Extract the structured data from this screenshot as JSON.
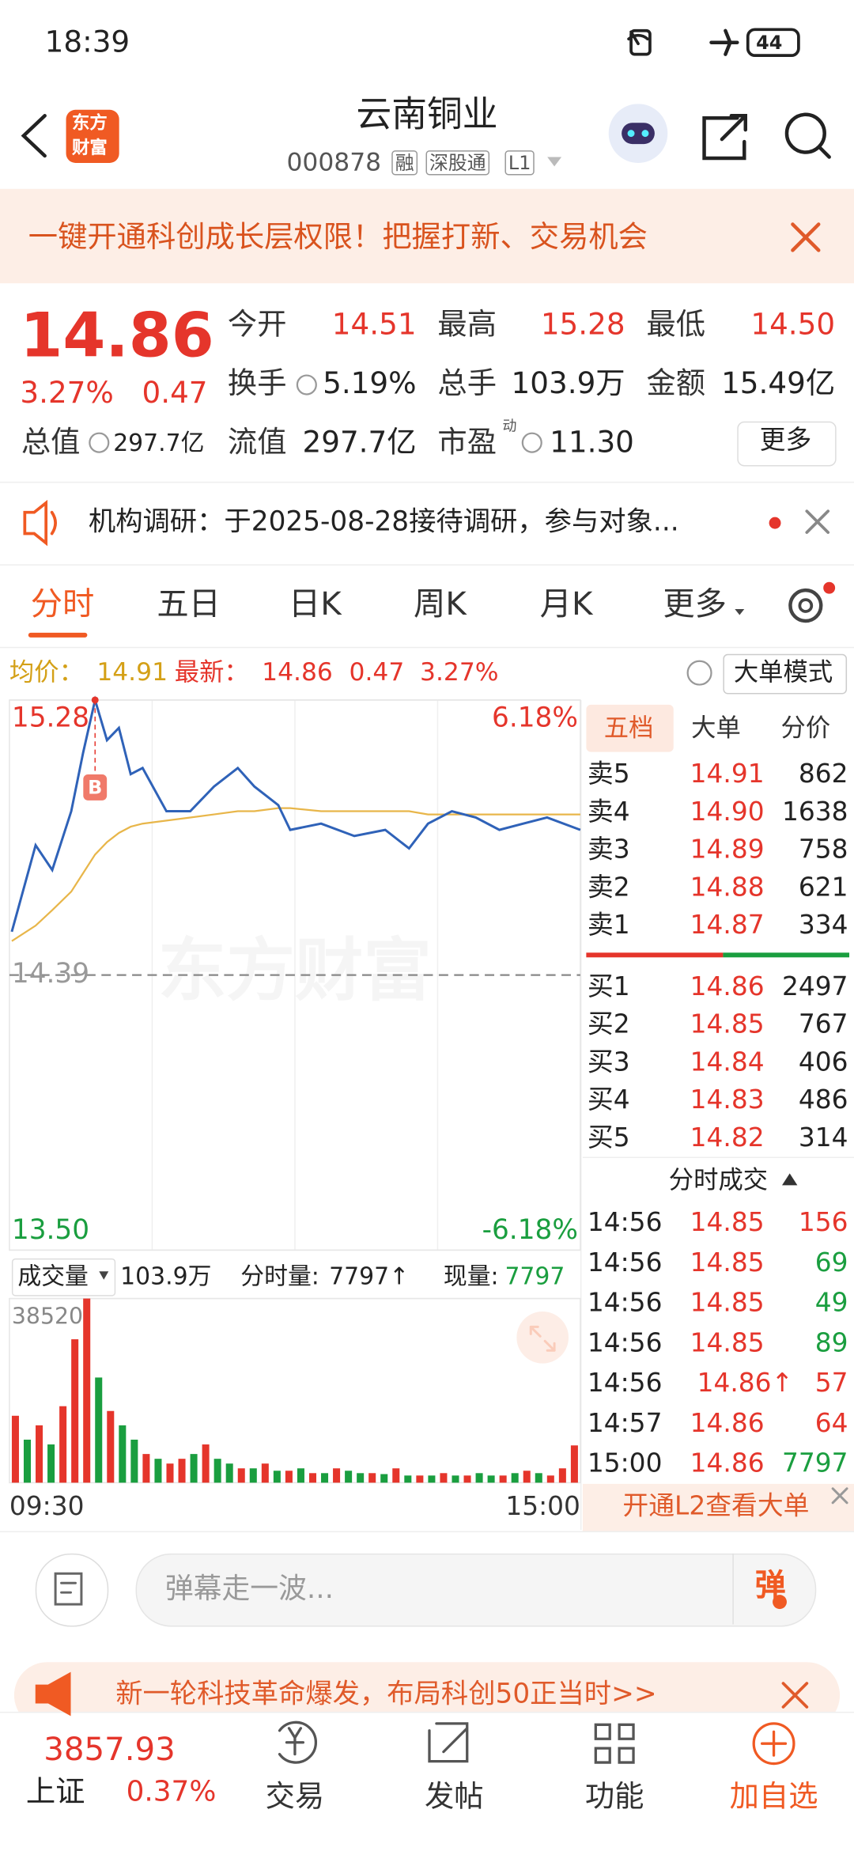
{
  "status_bar": {
    "time": "18:39",
    "battery": "44"
  },
  "header": {
    "logo_top": "东方",
    "logo_bottom": "财富",
    "title": "云南铜业",
    "code": "000878",
    "tags": [
      "融",
      "深股通",
      "L1"
    ]
  },
  "banner": {
    "text": "一键开通科创成长层权限！把握打新、交易机会"
  },
  "quote": {
    "price": "14.86",
    "change_pct": "3.27%",
    "change": "0.47",
    "more": "更多",
    "fields": [
      {
        "label": "今开",
        "value": "14.51"
      },
      {
        "label": "最高",
        "value": "15.28"
      },
      {
        "label": "最低",
        "value": "14.50"
      },
      {
        "label": "换手",
        "value": "5.19%"
      },
      {
        "label": "总手",
        "value": "103.9万"
      },
      {
        "label": "金额",
        "value": "15.49亿"
      },
      {
        "label": "总值",
        "value": "297.7亿"
      },
      {
        "label": "流值",
        "value": "297.7亿"
      },
      {
        "label": "市盈",
        "sup": "动",
        "value": "11.30"
      }
    ]
  },
  "notice": {
    "text": "机构调研：于2025-08-28接待调研，参与对象..."
  },
  "tabs": [
    "分时",
    "五日",
    "日K",
    "周K",
    "月K",
    "更多"
  ],
  "summary": {
    "avg_label": "均价：",
    "avg": "14.91",
    "last_label": "最新：",
    "last": "14.86",
    "change": "0.47",
    "pct": "3.27%",
    "mode": "大单模式"
  },
  "chart_data": [
    {
      "type": "line",
      "watermark": "东方财富",
      "annotation": "B",
      "x": [
        1,
        11,
        18,
        26,
        31,
        36,
        41,
        46,
        51,
        56,
        66,
        76,
        86,
        96,
        103,
        113,
        118,
        131,
        145,
        158,
        168,
        176,
        186,
        196,
        206,
        216,
        226,
        240
      ],
      "xlim": [
        0,
        240
      ],
      "series": [
        {
          "color": "#2f62b8",
          "values": [
            14.53,
            14.81,
            14.73,
            14.92,
            15.11,
            15.28,
            15.15,
            15.19,
            15.04,
            15.06,
            14.92,
            14.92,
            15.0,
            15.06,
            15.0,
            14.94,
            14.86,
            14.88,
            14.84,
            14.86,
            14.8,
            14.88,
            14.92,
            14.9,
            14.86,
            14.88,
            14.9,
            14.86
          ]
        },
        {
          "color": "#e8b64a",
          "values": [
            14.5,
            14.55,
            14.6,
            14.66,
            14.72,
            14.78,
            14.82,
            14.85,
            14.87,
            14.88,
            14.89,
            14.9,
            14.91,
            14.92,
            14.92,
            14.93,
            14.93,
            14.92,
            14.92,
            14.92,
            14.92,
            14.91,
            14.91,
            14.91,
            14.91,
            14.91,
            14.91,
            14.91
          ]
        }
      ],
      "ylim": [
        13.5,
        15.28
      ],
      "yticks": [
        15.28,
        14.39,
        {
          "value": 13.5,
          "label": "13.50"
        }
      ],
      "ytick_colors": [
        "#e5352b",
        "#999999",
        "#1a9e3f"
      ],
      "y2lim": [
        -6.18,
        6.18
      ],
      "y2ticks": [
        {
          "value": 6.18,
          "label": "6.18%"
        },
        {
          "value": -6.18,
          "label": "-6.18%"
        }
      ],
      "y2tick_colors": [
        "#e5352b",
        "#1a9e3f"
      ],
      "grid": true
    },
    {
      "type": "bar",
      "x": [
        2.5,
        7.5,
        12.5,
        17.5,
        22.5,
        27.5,
        32.5,
        37.5,
        42.5,
        47.5,
        52.5,
        57.5,
        62.5,
        67.5,
        72.5,
        77.5,
        82.5,
        87.5,
        92.5,
        97.5,
        102.5,
        107.5,
        112.5,
        117.5,
        122.5,
        127.5,
        132.5,
        137.5,
        142.5,
        147.5,
        152.5,
        157.5,
        162.5,
        167.5,
        172.5,
        177.5,
        182.5,
        187.5,
        192.5,
        197.5,
        202.5,
        207.5,
        212.5,
        217.5,
        222.5,
        227.5,
        232.5,
        237.5
      ],
      "xlim": [
        0,
        240
      ],
      "xticks": [
        {
          "value": 0,
          "label": "09:30"
        },
        {
          "value": 240,
          "label": "15:00"
        }
      ],
      "values": [
        14000,
        9000,
        12000,
        8000,
        16000,
        30000,
        38520,
        22000,
        15000,
        12000,
        9000,
        6000,
        5000,
        4000,
        5000,
        6000,
        8000,
        5000,
        4000,
        3000,
        3000,
        4000,
        2500,
        2500,
        3000,
        2000,
        2000,
        3000,
        2500,
        2000,
        2000,
        1800,
        3000,
        1500,
        1500,
        1500,
        2000,
        1500,
        1500,
        2000,
        1500,
        1500,
        2000,
        2500,
        2000,
        1500,
        3000,
        7797
      ],
      "colors": [
        "#e5352b",
        "#1a9e3f",
        "#e5352b",
        "#1a9e3f",
        "#e5352b",
        "#e5352b",
        "#e5352b",
        "#1a9e3f",
        "#e5352b",
        "#1a9e3f",
        "#1a9e3f",
        "#e5352b",
        "#1a9e3f",
        "#e5352b",
        "#e5352b",
        "#1a9e3f",
        "#e5352b",
        "#1a9e3f",
        "#1a9e3f",
        "#e5352b",
        "#1a9e3f",
        "#e5352b",
        "#1a9e3f",
        "#e5352b",
        "#1a9e3f",
        "#e5352b",
        "#1a9e3f",
        "#e5352b",
        "#1a9e3f",
        "#1a9e3f",
        "#e5352b",
        "#1a9e3f",
        "#e5352b",
        "#1a9e3f",
        "#e5352b",
        "#1a9e3f",
        "#e5352b",
        "#1a9e3f",
        "#e5352b",
        "#1a9e3f",
        "#1a9e3f",
        "#e5352b",
        "#1a9e3f",
        "#e5352b",
        "#1a9e3f",
        "#e5352b",
        "#e5352b",
        "#e5352b"
      ],
      "ylim": [
        0,
        38520
      ],
      "yticks": [
        38520
      ],
      "grid": true
    }
  ],
  "volume_bar": {
    "label": "成交量",
    "total": "103.9万",
    "minute_label": "分时量:",
    "minute": "7797↑",
    "now_label": "现量:",
    "now": "7797"
  },
  "order_book": {
    "tabs": [
      "五档",
      "大单",
      "分价"
    ],
    "sell": [
      [
        "卖5",
        "14.91",
        "862"
      ],
      [
        "卖4",
        "14.90",
        "1638"
      ],
      [
        "卖3",
        "14.89",
        "758"
      ],
      [
        "卖2",
        "14.88",
        "621"
      ],
      [
        "卖1",
        "14.87",
        "334"
      ]
    ],
    "buy": [
      [
        "买1",
        "14.86",
        "2497"
      ],
      [
        "买2",
        "14.85",
        "767"
      ],
      [
        "买3",
        "14.84",
        "406"
      ],
      [
        "买4",
        "14.83",
        "486"
      ],
      [
        "买5",
        "14.82",
        "314"
      ]
    ]
  },
  "trades": {
    "title": "分时成交",
    "rows": [
      {
        "time": "14:56",
        "price": "14.85",
        "volume": "156",
        "color": "#e5352b"
      },
      {
        "time": "14:56",
        "price": "14.85",
        "volume": "69",
        "color": "#1a9e3f"
      },
      {
        "time": "14:56",
        "price": "14.85",
        "volume": "49",
        "color": "#1a9e3f"
      },
      {
        "time": "14:56",
        "price": "14.85",
        "volume": "89",
        "color": "#1a9e3f"
      },
      {
        "time": "14:56",
        "price": "14.86↑",
        "volume": "57",
        "color": "#e5352b"
      },
      {
        "time": "14:57",
        "price": "14.86",
        "volume": "64",
        "color": "#e5352b"
      },
      {
        "time": "15:00",
        "price": "14.86",
        "volume": "7797",
        "color": "#1a9e3f"
      }
    ]
  },
  "l2_promo": "开通L2查看大单",
  "comment": {
    "placeholder": "弹幕走一波...",
    "button": "弹"
  },
  "ad": "新一轮科技革命爆发，布局科创50正当时>>",
  "bottom_nav": {
    "index_value": "3857.93",
    "index_name": "上证",
    "index_pct": "0.37%",
    "items": [
      "交易",
      "发帖",
      "功能",
      "加自选"
    ]
  }
}
